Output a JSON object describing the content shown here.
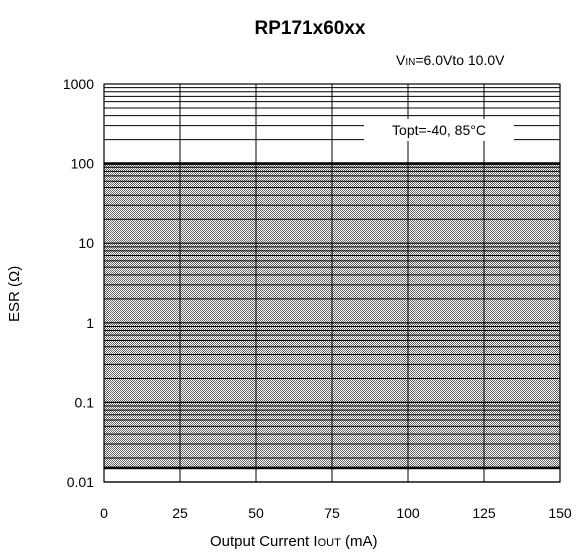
{
  "chart_data": {
    "type": "area",
    "title": "RP171x60xx",
    "condition": {
      "main": "V",
      "sub": "IN",
      "rest": "=6.0Vto 10.0V"
    },
    "annotation": "Topt=-40, 85°C",
    "xlabel": {
      "main": "Output Current I",
      "sub": "OUT",
      "rest": " (mA)"
    },
    "ylabel": "ESR (Ω)",
    "x_ticks": [
      0,
      25,
      50,
      75,
      100,
      125,
      150
    ],
    "x_tick_labels": [
      "0",
      "25",
      "50",
      "75",
      "100",
      "125",
      "150"
    ],
    "y_ticks": [
      0.01,
      0.1,
      1,
      10,
      100,
      1000
    ],
    "y_tick_labels": [
      "0.01",
      "0.1",
      "1",
      "10",
      "100",
      "1000"
    ],
    "xlim": [
      0,
      150
    ],
    "ylim": [
      0.01,
      1000
    ],
    "yscale": "log",
    "grid": true,
    "series": [
      {
        "x": [
          0,
          150
        ],
        "y_low": [
          0.015,
          0.015
        ],
        "y_high": [
          100,
          100
        ]
      }
    ]
  }
}
